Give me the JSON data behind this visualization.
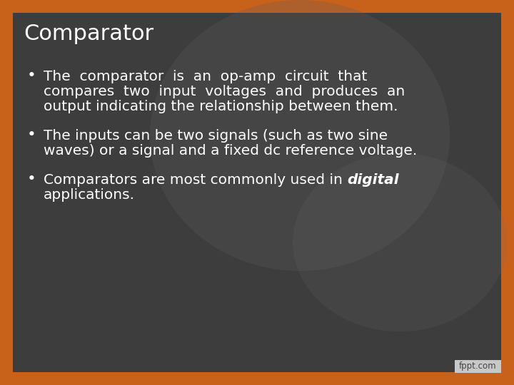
{
  "title": "Comparator",
  "bullet1_line1": "The  comparator  is  an  op-amp  circuit  that",
  "bullet1_line2": "compares  two  input  voltages  and  produces  an",
  "bullet1_line3": "output indicating the relationship between them.",
  "bullet2_line1": "The inputs can be two signals (such as two sine",
  "bullet2_line2": "waves) or a signal and a fixed dc reference voltage.",
  "bullet3_prefix": "Comparators are most commonly used in ",
  "bullet3_italic": "digital",
  "bullet3_line2": "applications.",
  "bg_color": "#3d3d3d",
  "border_color": "#c8611a",
  "text_color": "#ffffff",
  "title_fontsize": 22,
  "body_fontsize": 14.5,
  "border_width": 18,
  "watermark": "fppt.com",
  "watermark_bg": "#c8c8c8",
  "gradient_color": "#606060",
  "gradient_alpha": 0.25
}
